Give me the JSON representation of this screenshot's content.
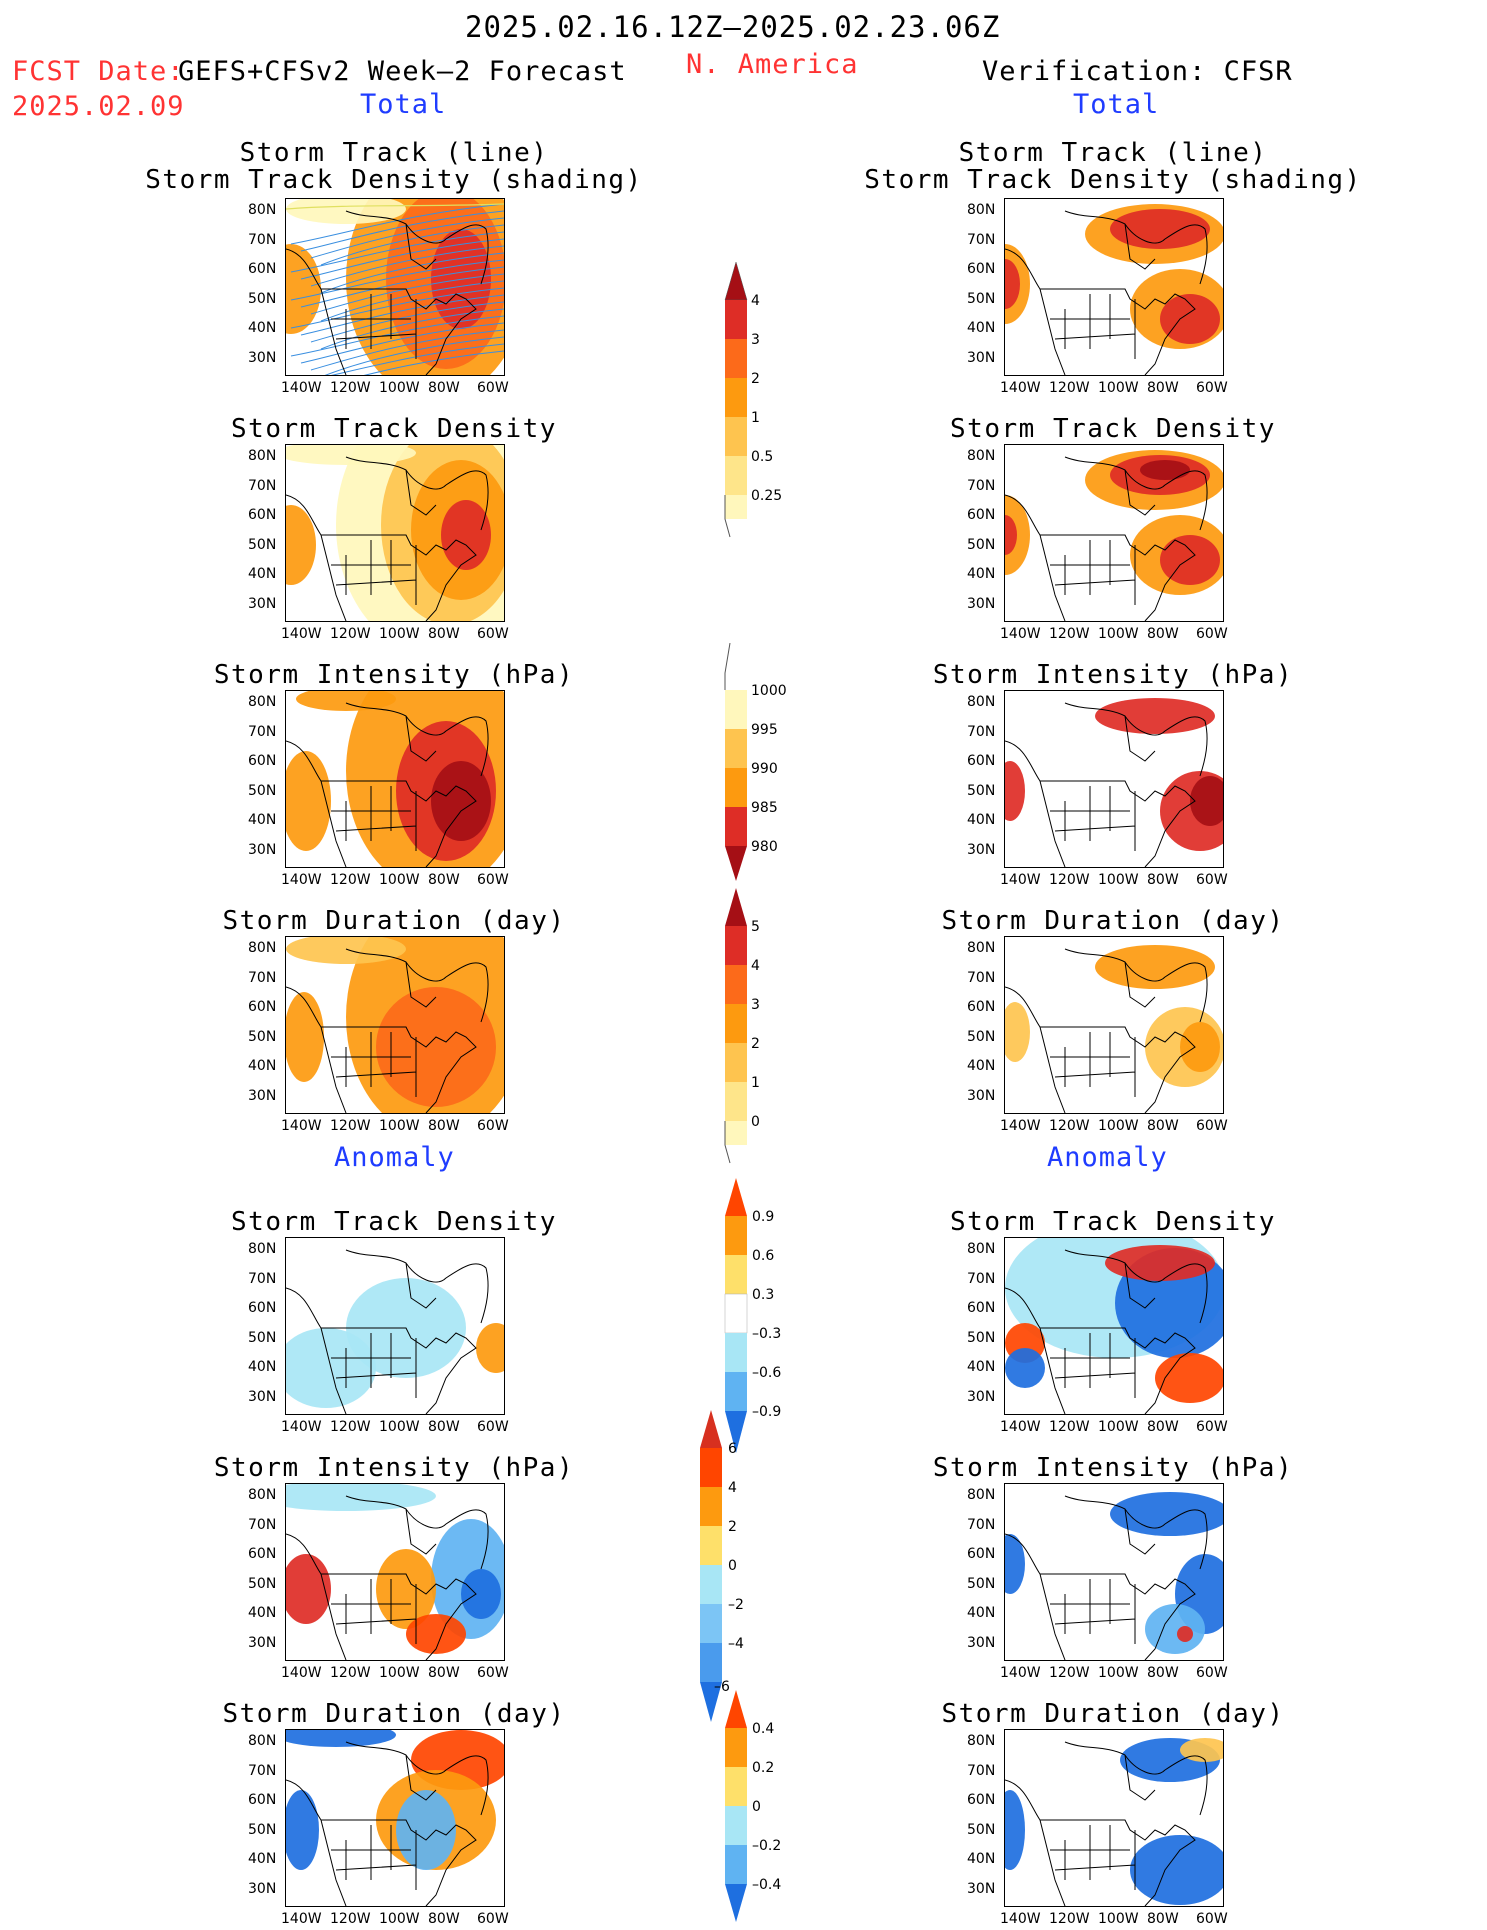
{
  "header": {
    "date_range": "2025.02.16.12Z–2025.02.23.06Z",
    "fcst_date_label": "FCST Date:",
    "fcst_date_value": "2025.02.09",
    "model": "GEFS+CFSv2 Week–2 Forecast",
    "region": "N. America",
    "verification": "Verification: CFSR"
  },
  "sections": {
    "total": "Total",
    "anomaly": "Anomaly"
  },
  "panel_titles": {
    "storm_track_line": "Storm Track (line)",
    "storm_track_density_shading": "Storm Track Density (shading)",
    "storm_track_density": "Storm Track Density",
    "storm_intensity": "Storm Intensity (hPa)",
    "storm_duration": "Storm Duration (day)"
  },
  "axes": {
    "lat_labels": [
      "80N",
      "70N",
      "60N",
      "50N",
      "40N",
      "30N"
    ],
    "lon_labels": [
      "140W",
      "120W",
      "100W",
      "80W",
      "60W"
    ]
  },
  "colorbars": {
    "density": {
      "labels": [
        "4",
        "3",
        "2",
        "1",
        "0.5",
        "0.25"
      ],
      "colors": [
        "#a50f15",
        "#de2d26",
        "#fc6a1a",
        "#fd9a0f",
        "#fec44f",
        "#fee58a",
        "#fff7bc"
      ]
    },
    "intensity": {
      "labels": [
        "1000",
        "995",
        "990",
        "985",
        "980"
      ],
      "colors": [
        "#fff7bc",
        "#fec44f",
        "#fd9a0f",
        "#fc6a1a",
        "#de2d26",
        "#a50f15"
      ]
    },
    "duration": {
      "labels": [
        "5",
        "4",
        "3",
        "2",
        "1",
        "0"
      ],
      "colors": [
        "#a50f15",
        "#de2d26",
        "#fc6a1a",
        "#fd9a0f",
        "#fec44f",
        "#fee58a",
        "#fff7bc"
      ]
    },
    "density_anom": {
      "labels": [
        "0.9",
        "0.6",
        "0.3",
        "–0.3",
        "–0.6",
        "–0.9"
      ],
      "colors": [
        "#ff4500",
        "#fd9a0f",
        "#fee06a",
        "#ffffff",
        "#a8e6f5",
        "#5fb3f2",
        "#1e6fe0"
      ]
    },
    "intensity_anom": {
      "labels": [
        "6",
        "4",
        "2",
        "0",
        "–2",
        "–4",
        "–6"
      ],
      "colors": [
        "#d7301f",
        "#ff4500",
        "#fd9a0f",
        "#fee06a",
        "#a8e6f5",
        "#7cc5f5",
        "#4a9bed",
        "#1e6fe0"
      ]
    },
    "duration_anom": {
      "labels": [
        "0.4",
        "0.2",
        "0",
        "–0.2",
        "–0.4"
      ],
      "colors": [
        "#ff4500",
        "#fd9a0f",
        "#fee06a",
        "#a8e6f5",
        "#5fb3f2",
        "#1e6fe0"
      ]
    }
  },
  "colors": {
    "red_text": "#ff3333",
    "blue_text": "#1f3cff"
  }
}
